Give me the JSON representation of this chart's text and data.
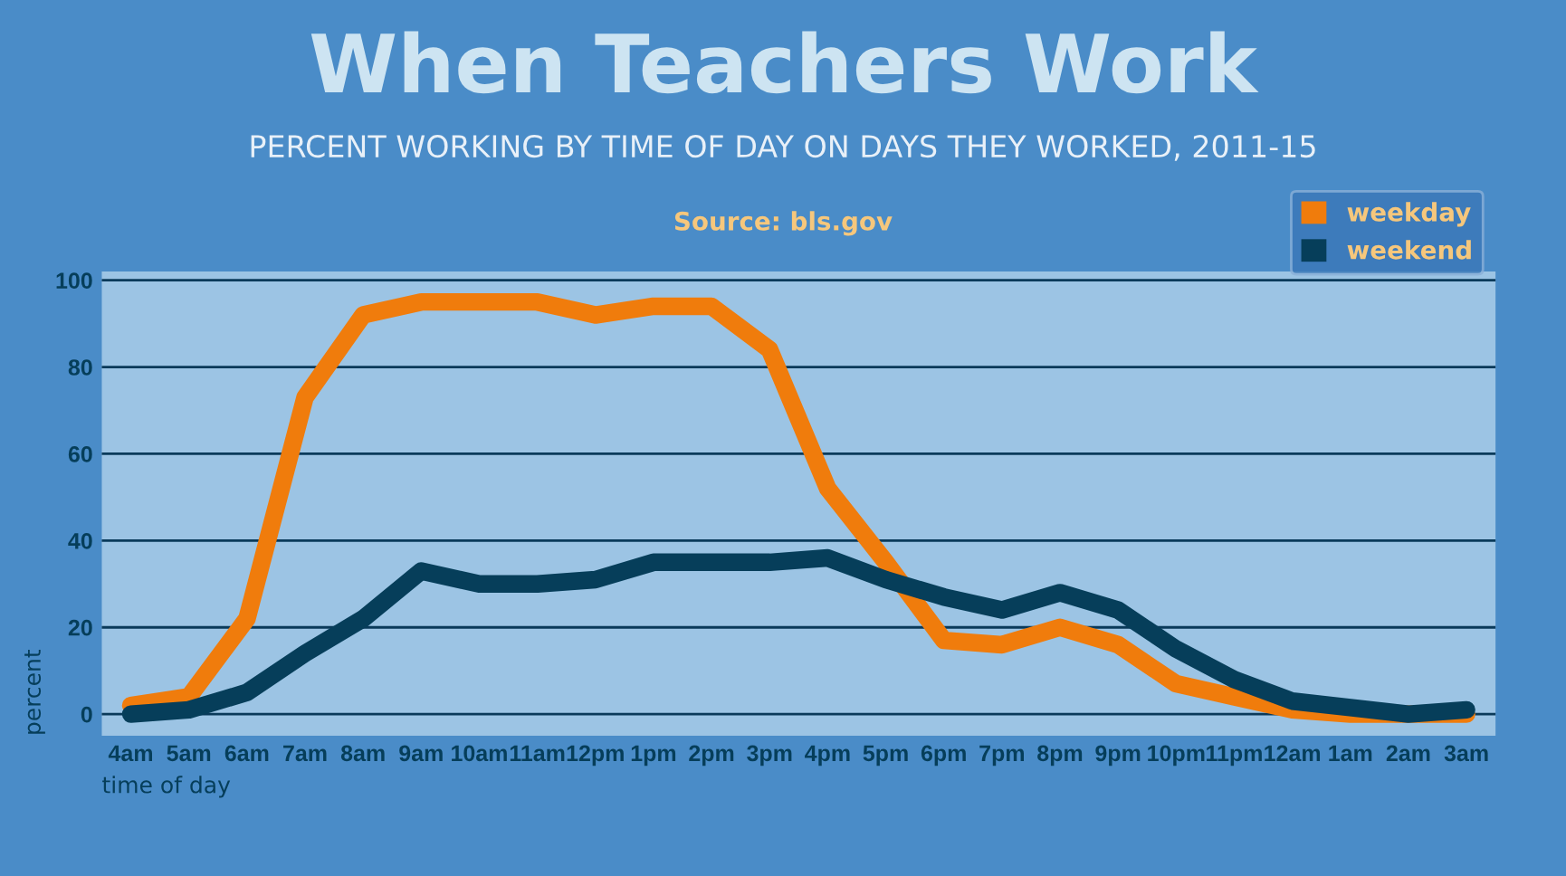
{
  "chart_data": {
    "type": "line",
    "title": "When Teachers Work",
    "subtitle": "PERCENT WORKING BY TIME OF DAY ON DAYS THEY WORKED, 2011-15",
    "annotations": [
      "Source: bls.gov"
    ],
    "xlabel": "time of day",
    "ylabel": "percent",
    "categories": [
      "4am",
      "5am",
      "6am",
      "7am",
      "8am",
      "9am",
      "10am",
      "11am",
      "12pm",
      "1pm",
      "2pm",
      "3pm",
      "4pm",
      "5pm",
      "6pm",
      "7pm",
      "8pm",
      "9pm",
      "10pm",
      "11pm",
      "12am",
      "1am",
      "2am",
      "3am"
    ],
    "series": [
      {
        "name": "weekday",
        "color": "#f07c0c",
        "values": [
          2,
          4,
          22,
          73,
          92,
          95,
          95,
          95,
          92,
          94,
          94,
          84,
          52,
          35,
          17,
          16,
          20,
          16,
          7,
          4,
          1,
          0,
          0,
          0
        ]
      },
      {
        "name": "weekend",
        "color": "#063e5a",
        "values": [
          0,
          1,
          5,
          14,
          22,
          33,
          30,
          30,
          31,
          35,
          35,
          35,
          36,
          31,
          27,
          24,
          28,
          24,
          15,
          8,
          3,
          1.5,
          0,
          1
        ]
      }
    ],
    "ylim": [
      -5,
      102
    ],
    "yticks": [
      0,
      20,
      40,
      60,
      80,
      100
    ],
    "grid": "y",
    "legend": "top right",
    "marker": "none",
    "line_style": "solid"
  }
}
